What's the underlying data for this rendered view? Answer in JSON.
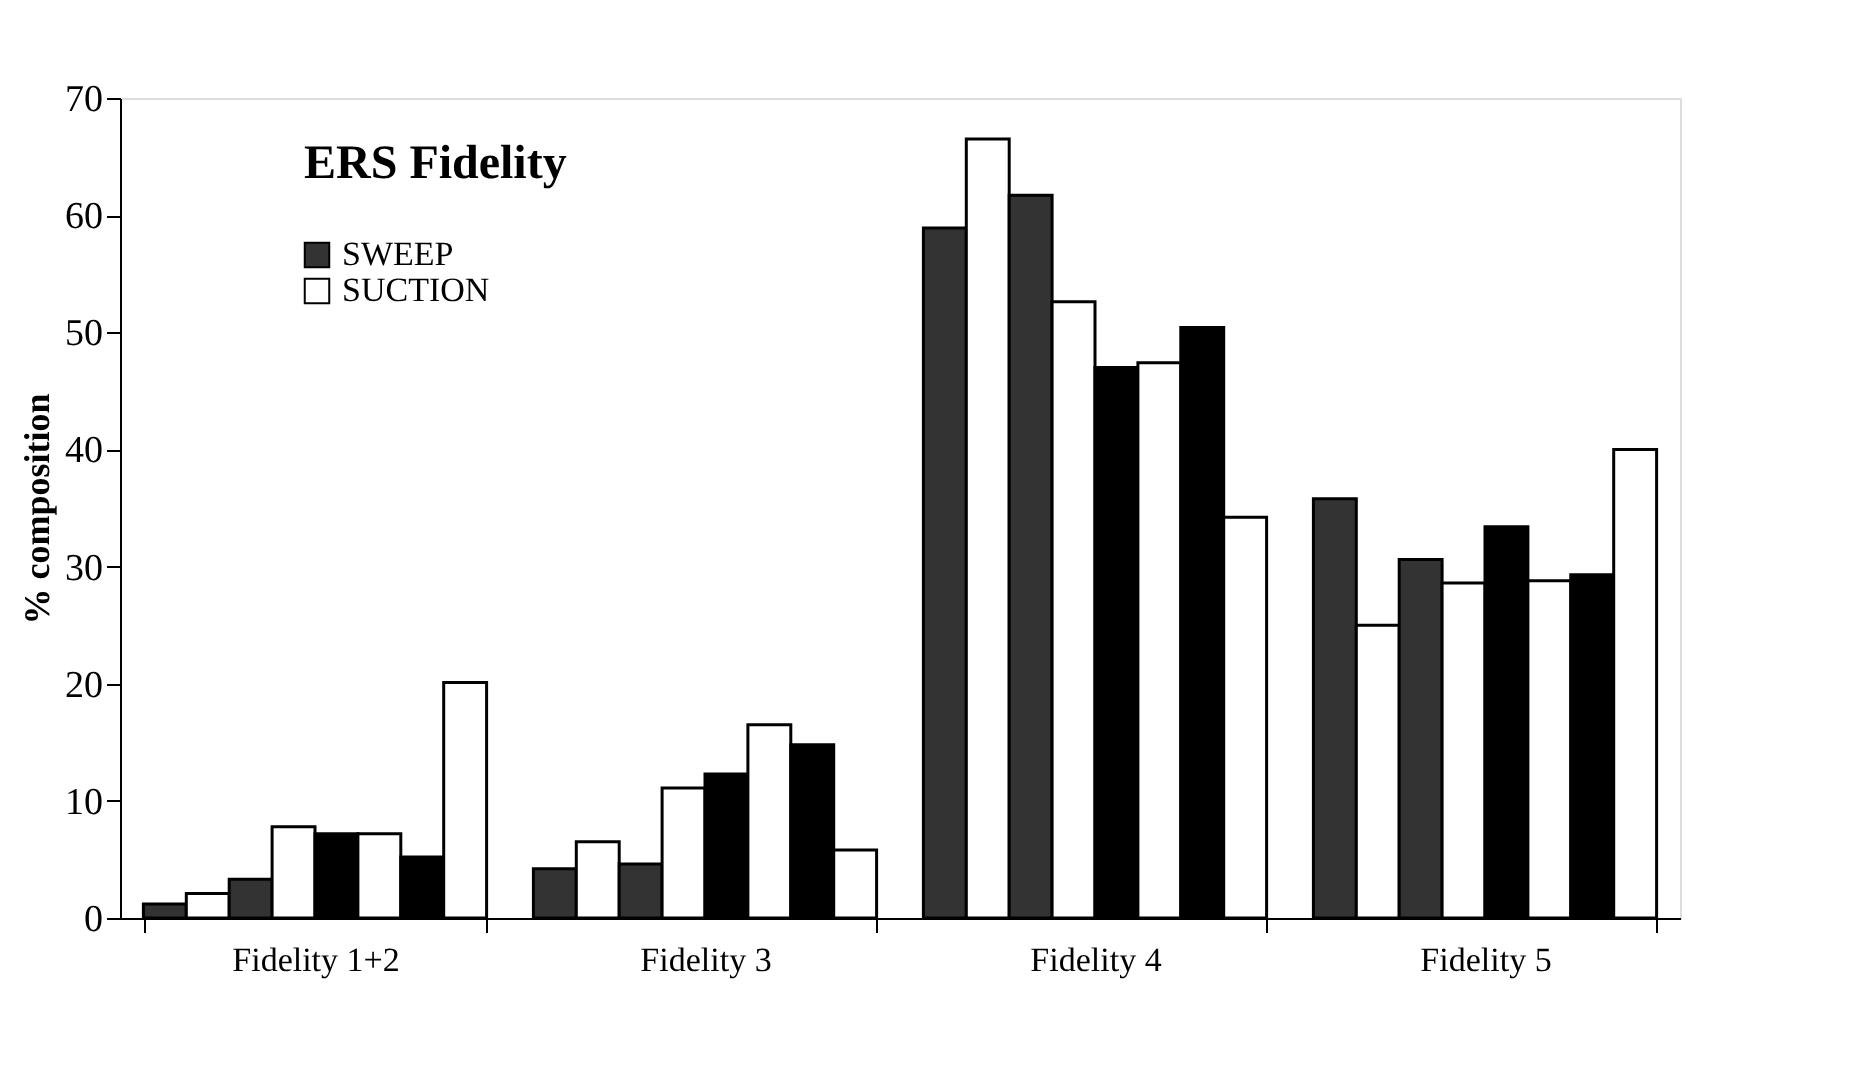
{
  "chart_data": {
    "type": "bar",
    "title": "ERS Fidelity",
    "ylabel": "% composition",
    "categories": [
      "Fidelity 1+2",
      "Fidelity 3",
      "Fidelity 4",
      "Fidelity 5"
    ],
    "series": [
      {
        "name": "SWEEP",
        "color": "#333333",
        "values": [
          1.2,
          4.2,
          58.9,
          35.8
        ]
      },
      {
        "name": "SUCTION",
        "color": "#ffffff",
        "values": [
          2.1,
          6.5,
          66.5,
          25.0
        ]
      },
      {
        "color": "#333333",
        "values": [
          3.3,
          4.6,
          61.7,
          30.6
        ]
      },
      {
        "color": "#ffffff",
        "values": [
          7.8,
          11.1,
          52.6,
          28.6
        ]
      },
      {
        "color": "#000000",
        "values": [
          7.2,
          12.3,
          47.0,
          33.4
        ]
      },
      {
        "color": "#ffffff",
        "values": [
          7.2,
          16.5,
          47.4,
          28.8
        ]
      },
      {
        "color": "#000000",
        "values": [
          5.2,
          14.8,
          50.4,
          29.3
        ]
      },
      {
        "color": "#ffffff",
        "values": [
          20.1,
          5.8,
          34.2,
          40.0
        ]
      }
    ],
    "ylim": [
      0,
      70
    ],
    "yticks": [
      0,
      10,
      20,
      30,
      40,
      50,
      60,
      70
    ],
    "grid": false,
    "legend": "top left"
  }
}
